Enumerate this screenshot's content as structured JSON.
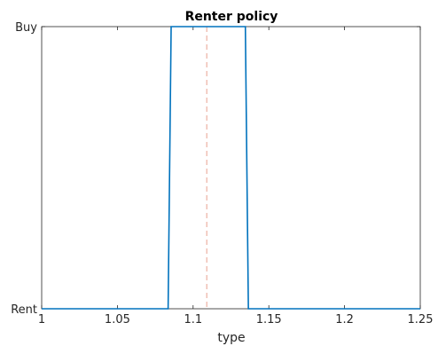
{
  "chart_data": {
    "type": "line",
    "title": "Renter policy",
    "xlabel": "type",
    "ylabel": "",
    "xlim": [
      1,
      1.25
    ],
    "ylim": [
      0,
      1
    ],
    "x_ticks": [
      {
        "value": 1,
        "label": "1"
      },
      {
        "value": 1.05,
        "label": "1.05"
      },
      {
        "value": 1.1,
        "label": "1.1"
      },
      {
        "value": 1.15,
        "label": "1.15"
      },
      {
        "value": 1.2,
        "label": "1.2"
      },
      {
        "value": 1.25,
        "label": "1.25"
      }
    ],
    "y_ticks": [
      {
        "value": 0,
        "label": "Rent"
      },
      {
        "value": 1,
        "label": "Buy"
      }
    ],
    "grid": false,
    "series": [
      {
        "color": "#0072bd",
        "x": [
          1,
          1.0835,
          1.0855,
          1.1345,
          1.1365,
          1.25
        ],
        "y": [
          0,
          0,
          1,
          1,
          0,
          0
        ]
      }
    ],
    "reference_lines": [
      {
        "orientation": "vertical",
        "x": 1.109,
        "style": "dashed",
        "color": "#e8a090"
      }
    ]
  }
}
